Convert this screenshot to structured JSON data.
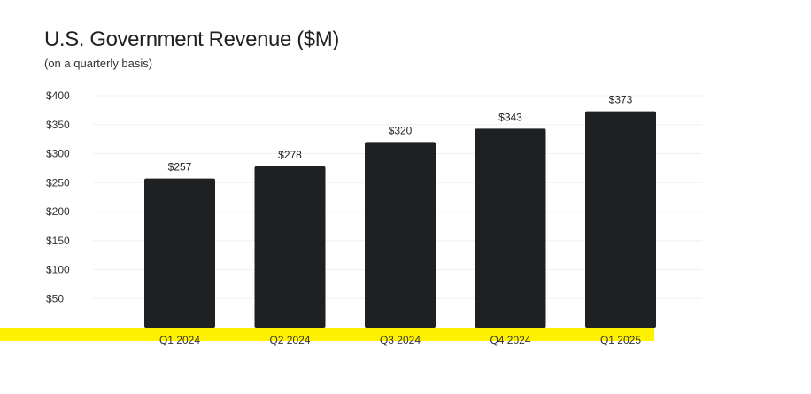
{
  "chart_data": {
    "type": "bar",
    "title": "U.S. Government Revenue ($M)",
    "subtitle": "(on a quarterly basis)",
    "xlabel": "",
    "ylabel": "",
    "categories": [
      "Q1 2024",
      "Q2 2024",
      "Q3 2024",
      "Q4 2024",
      "Q1 2025"
    ],
    "values": [
      257,
      278,
      320,
      343,
      373
    ],
    "data_labels": [
      "$257",
      "$278",
      "$320",
      "$343",
      "$373"
    ],
    "yticks": [
      50,
      100,
      150,
      200,
      250,
      300,
      350,
      400
    ],
    "ytick_labels": [
      "$50",
      "$100",
      "$150",
      "$200",
      "$250",
      "$300",
      "$350",
      "$400"
    ],
    "ylim": [
      0,
      400
    ],
    "grid": true,
    "legend": "none",
    "colors": {
      "bar": "#1f2022",
      "gridline": "#f0f0f0",
      "baseline": "#bdbdbd",
      "highlight": "#fff200"
    }
  }
}
